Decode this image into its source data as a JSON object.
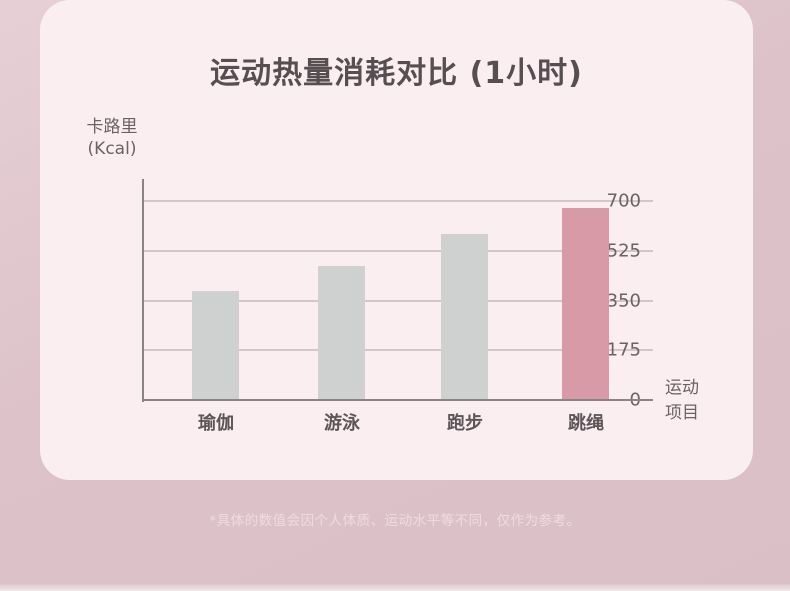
{
  "page": {
    "footnote": "*具体的数值会因个人体质、运动水平等不同，仅作为参考。"
  },
  "chart_data": {
    "type": "bar",
    "title": "运动热量消耗对比 (1小时)",
    "categories": [
      "瑜伽",
      "游泳",
      "跑步",
      "跳绳"
    ],
    "values": [
      385,
      470,
      585,
      675
    ],
    "title_note": "values estimated from gridlines",
    "xlabel": "运动项目",
    "ylabel": "卡路里",
    "ylabel_unit": "(Kcal)",
    "ylim": [
      0,
      700
    ],
    "yticks": [
      0,
      175,
      350,
      525,
      700
    ],
    "grid": true,
    "legend": "none",
    "bar_color": "#cfd1d1",
    "highlight_index": 3,
    "highlight_color": "#d89aa6"
  },
  "colors": {
    "card_bg": "#faeef1",
    "page_bg_top": "#e6d0d6",
    "page_bg_bottom": "#dbbfc7",
    "axis": "#8a8485",
    "gridline": "#d5c6c9",
    "title_text": "#564e50",
    "tick_text": "#6b6264",
    "footnote_text": "#efdbdf"
  }
}
